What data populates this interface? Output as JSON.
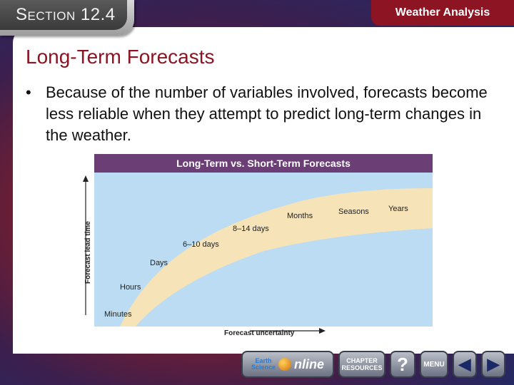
{
  "section": {
    "label": "Section 12.4"
  },
  "header": {
    "title": "Weather Analysis"
  },
  "slide": {
    "title": "Long-Term Forecasts",
    "bullet_marker": "•",
    "bullet_text": "Because of the number of variables involved, forecasts become less reliable when they attempt to predict long-term changes in the weather."
  },
  "figure": {
    "title": "Long-Term vs. Short-Term Forecasts",
    "y_axis_label": "Forecast lead time",
    "x_axis_label": "Forecast uncertainty",
    "stages": [
      "Minutes",
      "Hours",
      "Days",
      "6–10 days",
      "8–14 days",
      "Months",
      "Seasons",
      "Years"
    ],
    "colors": {
      "sky": "#bcdcf3",
      "band": "#f6e4b8",
      "title_bar": "#6b3f75"
    }
  },
  "nav": {
    "earth_label_1": "Earth",
    "earth_label_2": "Science",
    "online_label": "nline",
    "chapter_label_1": "CHAPTER",
    "chapter_label_2": "RESOURCES",
    "help_label": "?",
    "menu_label": "MENU",
    "prev_label": "◀",
    "next_label": "▶"
  }
}
